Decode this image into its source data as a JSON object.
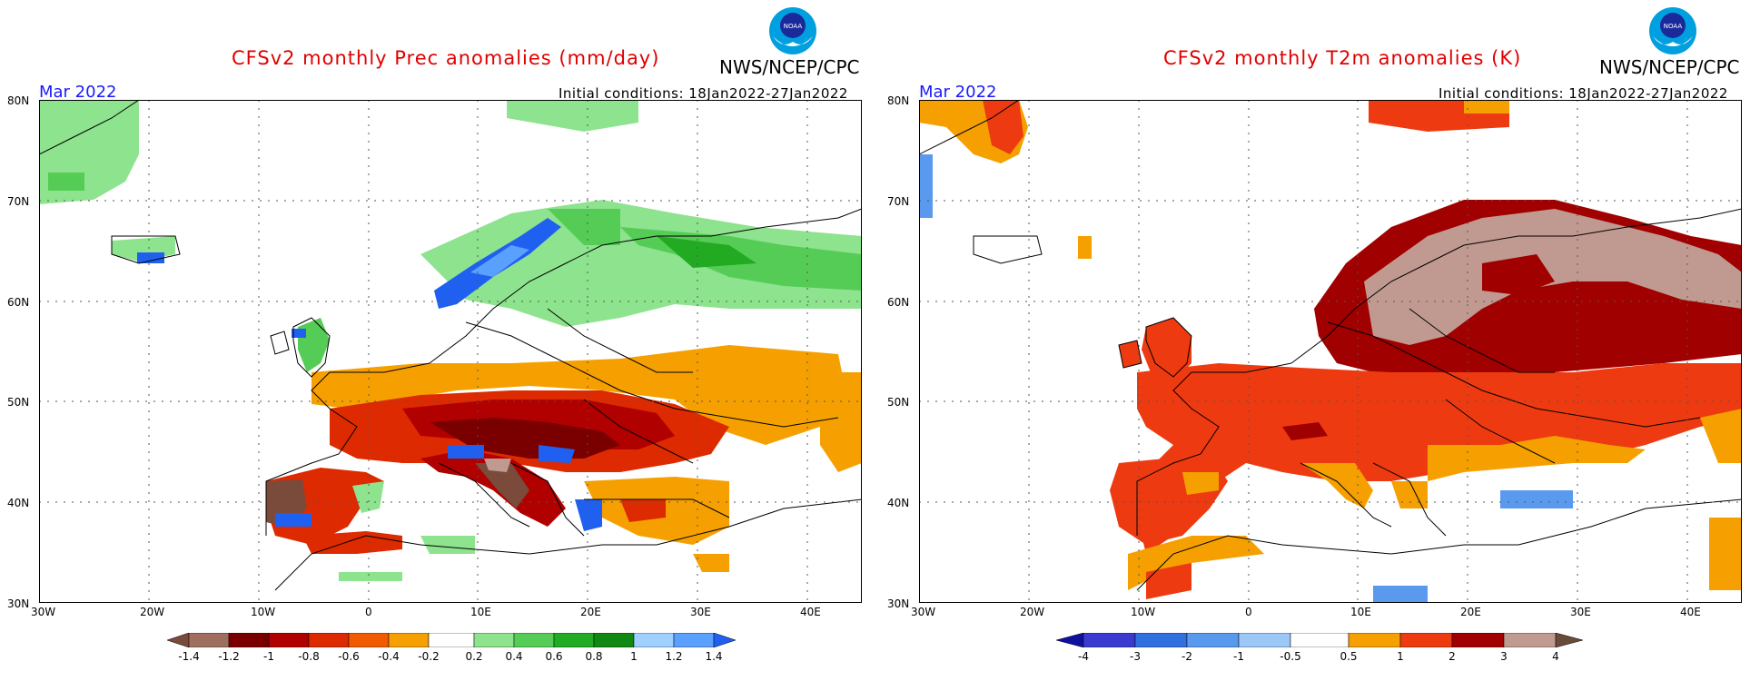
{
  "left": {
    "title": "CFSv2 monthly Prec anomalies (mm/day)",
    "agency": "NWS/NCEP/CPC",
    "month": "Mar 2022",
    "initial_conditions": "Initial conditions: 18Jan2022-27Jan2022",
    "lat_labels": [
      "80N",
      "70N",
      "60N",
      "50N",
      "40N",
      "30N"
    ],
    "lon_labels": [
      "30W",
      "20W",
      "10W",
      "0",
      "10E",
      "20E",
      "30E",
      "40E"
    ],
    "colorbar": {
      "labels": [
        "-1.4",
        "-1.2",
        "-1",
        "-0.8",
        "-0.6",
        "-0.4",
        "-0.2",
        "0.2",
        "0.4",
        "0.6",
        "0.8",
        "1",
        "1.2",
        "1.4"
      ],
      "colors": [
        "#7a4a3a",
        "#9e6f5e",
        "#7a0000",
        "#b00000",
        "#dd2a00",
        "#f25a00",
        "#f5a000",
        "#ffffff",
        "#8ee38e",
        "#55cc55",
        "#22aa22",
        "#118811",
        "#a0d0ff",
        "#5aa0ff",
        "#2060f0"
      ]
    }
  },
  "right": {
    "title": "CFSv2 monthly T2m anomalies (K)",
    "agency": "NWS/NCEP/CPC",
    "month": "Mar 2022",
    "initial_conditions": "Initial conditions: 18Jan2022-27Jan2022",
    "lat_labels": [
      "80N",
      "70N",
      "60N",
      "50N",
      "40N",
      "30N"
    ],
    "lon_labels": [
      "30W",
      "20W",
      "10W",
      "0",
      "10E",
      "20E",
      "30E",
      "40E"
    ],
    "colorbar": {
      "labels": [
        "-4",
        "-3",
        "-2",
        "-1",
        "-0.5",
        "0.5",
        "1",
        "2",
        "3",
        "4"
      ],
      "colors": [
        "#1010a0",
        "#3a3ad0",
        "#3070e0",
        "#5a9aee",
        "#9cc8f8",
        "#ffffff",
        "#f5a000",
        "#ee3a10",
        "#a00000",
        "#c09a90",
        "#6a4a3a"
      ]
    }
  }
}
